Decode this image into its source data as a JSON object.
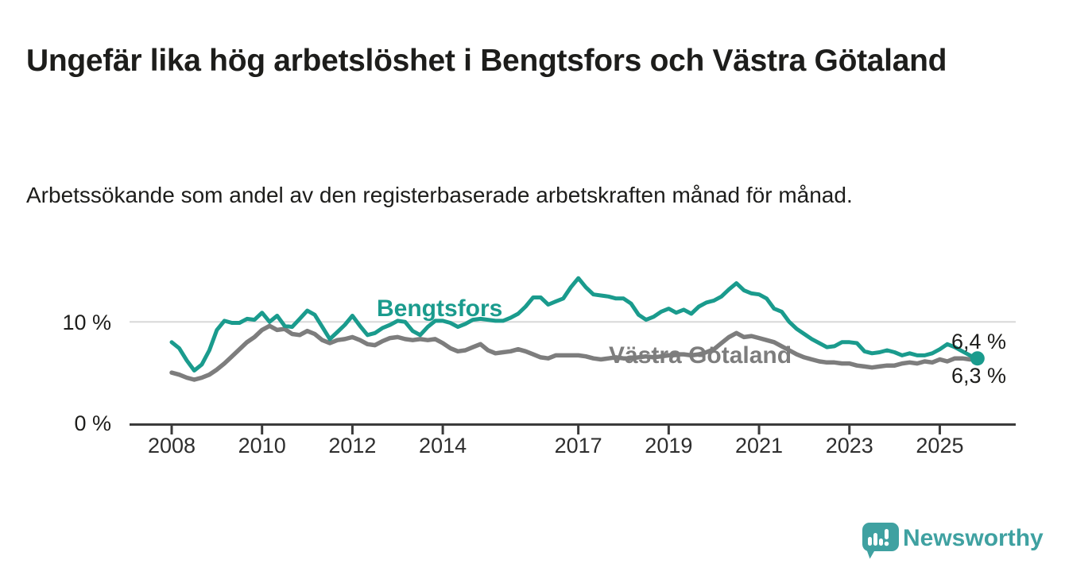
{
  "header": {
    "title": "Ungefär lika hög arbetslöshet i Bengtsfors och Västra Götaland",
    "subtitle": "Arbetssökande som andel av den registerbaserade arbetskraften månad för månad."
  },
  "footer": {
    "brand": "Newsworthy",
    "brand_color": "#3fa1a1",
    "logo_icon": "bar-chart-speech-bubble-icon"
  },
  "chart_data": {
    "type": "line",
    "title": "Ungefär lika hög arbetslöshet i Bengtsfors och Västra Götaland",
    "subtitle": "Arbetssökande som andel av den registerbaserade arbetskraften månad för månad.",
    "x_start_year": 2008.0,
    "x_step_years": 0.166667,
    "xlim": [
      2007.05,
      2026.7
    ],
    "ylim": [
      0,
      15.5
    ],
    "grid": "horizontal-gridline-at-10-only",
    "legend_position": "inline-series-labels",
    "x_ticks": [
      {
        "year": 2008,
        "label": "2008"
      },
      {
        "year": 2010,
        "label": "2010"
      },
      {
        "year": 2012,
        "label": "2012"
      },
      {
        "year": 2014,
        "label": "2014"
      },
      {
        "year": 2017,
        "label": "2017"
      },
      {
        "year": 2019,
        "label": "2019"
      },
      {
        "year": 2021,
        "label": "2021"
      },
      {
        "year": 2023,
        "label": "2023"
      },
      {
        "year": 2025,
        "label": "2025"
      }
    ],
    "y_ticks": [
      {
        "value": 0,
        "label": "0 %"
      },
      {
        "value": 10,
        "label": "10 %"
      }
    ],
    "series": [
      {
        "name": "Bengtsfors",
        "color": "#1a9b8d",
        "stroke_width": 5,
        "end_dot": true,
        "end_label": "6,4 %",
        "values": [
          8.0,
          7.4,
          6.2,
          5.2,
          5.8,
          7.2,
          9.2,
          10.1,
          9.9,
          9.9,
          10.3,
          10.2,
          10.9,
          10.0,
          10.6,
          9.6,
          9.5,
          10.3,
          11.1,
          10.7,
          9.5,
          8.3,
          9.0,
          9.7,
          10.6,
          9.6,
          8.7,
          8.9,
          9.4,
          9.7,
          10.1,
          10.0,
          9.1,
          8.7,
          9.5,
          10.1,
          10.1,
          9.9,
          9.5,
          9.8,
          10.2,
          10.3,
          10.2,
          10.1,
          10.1,
          10.4,
          10.8,
          11.5,
          12.4,
          12.4,
          11.7,
          12.0,
          12.3,
          13.4,
          14.3,
          13.4,
          12.7,
          12.6,
          12.5,
          12.3,
          12.3,
          11.8,
          10.7,
          10.2,
          10.5,
          11.0,
          11.3,
          10.9,
          11.2,
          10.8,
          11.5,
          11.9,
          12.1,
          12.5,
          13.2,
          13.8,
          13.1,
          12.8,
          12.7,
          12.3,
          11.3,
          11.0,
          10.0,
          9.3,
          8.8,
          8.3,
          7.9,
          7.5,
          7.6,
          8.0,
          8.0,
          7.9,
          7.1,
          6.9,
          7.0,
          7.2,
          7.0,
          6.7,
          6.9,
          6.7,
          6.7,
          6.9,
          7.3,
          7.8,
          7.5,
          7.1,
          6.7,
          6.4
        ]
      },
      {
        "name": "Västra Götaland",
        "color": "#7d7d7d",
        "stroke_width": 5.5,
        "end_dot": false,
        "end_label": "6,3 %",
        "values": [
          5.0,
          4.8,
          4.5,
          4.3,
          4.5,
          4.8,
          5.3,
          5.9,
          6.6,
          7.3,
          8.0,
          8.5,
          9.2,
          9.6,
          9.2,
          9.3,
          8.8,
          8.7,
          9.1,
          8.8,
          8.2,
          7.9,
          8.2,
          8.3,
          8.5,
          8.2,
          7.8,
          7.7,
          8.1,
          8.4,
          8.5,
          8.3,
          8.2,
          8.3,
          8.2,
          8.3,
          7.9,
          7.4,
          7.1,
          7.2,
          7.5,
          7.8,
          7.2,
          6.9,
          7.0,
          7.1,
          7.3,
          7.1,
          6.8,
          6.5,
          6.4,
          6.7,
          6.7,
          6.7,
          6.7,
          6.6,
          6.4,
          6.3,
          6.4,
          6.5,
          6.4,
          6.4,
          6.5,
          6.6,
          6.5,
          6.6,
          6.7,
          6.8,
          6.8,
          6.7,
          6.8,
          7.0,
          7.3,
          7.9,
          8.5,
          8.9,
          8.5,
          8.6,
          8.4,
          8.2,
          8.0,
          7.6,
          7.2,
          6.8,
          6.5,
          6.3,
          6.1,
          6.0,
          6.0,
          5.9,
          5.9,
          5.7,
          5.6,
          5.5,
          5.6,
          5.7,
          5.7,
          5.9,
          6.0,
          5.9,
          6.1,
          6.0,
          6.3,
          6.1,
          6.4,
          6.4,
          6.3,
          6.3
        ]
      }
    ]
  }
}
